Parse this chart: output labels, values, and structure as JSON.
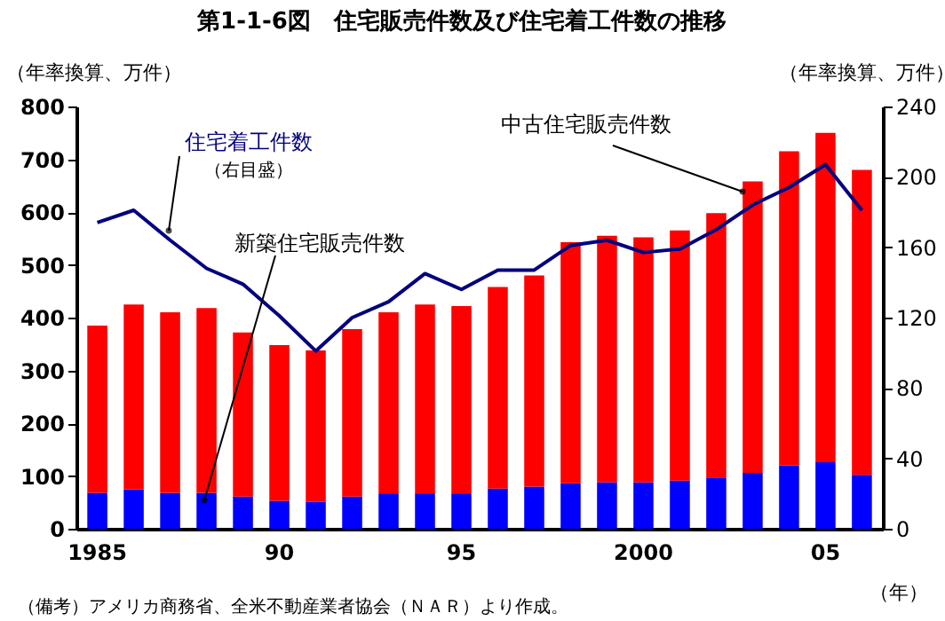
{
  "chart_data": {
    "type": "bar",
    "stacked": true,
    "title": "第1-1-6図　住宅販売件数及び住宅着工件数の推移",
    "categories": [
      "1985",
      null,
      null,
      null,
      null,
      "90",
      null,
      null,
      null,
      null,
      "95",
      null,
      null,
      null,
      null,
      "2000",
      null,
      null,
      null,
      null,
      "05",
      null
    ],
    "xlabel": "（年）",
    "ylabel": "（年率換算、万件）",
    "y2label": "（年率換算、万件）",
    "ylim": [
      0,
      800
    ],
    "yticks": [
      0,
      100,
      200,
      300,
      400,
      500,
      600,
      700,
      800
    ],
    "y2lim": [
      0,
      240
    ],
    "y2ticks": [
      0,
      40,
      80,
      120,
      160,
      200,
      240
    ],
    "series": [
      {
        "name": "新築住宅販売件数",
        "color": "#0000ff",
        "values": [
          68,
          75,
          68,
          68,
          61,
          53,
          51,
          61,
          67,
          67,
          67,
          76,
          80,
          86,
          88,
          88,
          91,
          97,
          106,
          120,
          126,
          102
        ]
      },
      {
        "name": "中古住宅販売件数",
        "color": "#ff0000",
        "values": [
          317,
          350,
          342,
          350,
          311,
          295,
          287,
          317,
          343,
          358,
          355,
          382,
          400,
          457,
          467,
          464,
          474,
          501,
          552,
          595,
          624,
          578
        ]
      },
      {
        "name": "住宅着工件数",
        "type": "line",
        "axis": "y2",
        "color": "#000080",
        "values": [
          174,
          181,
          164,
          148,
          139,
          121,
          101,
          120,
          129,
          145,
          136,
          147,
          147,
          161,
          164,
          157,
          159,
          170,
          184,
          194,
          207,
          181
        ]
      }
    ],
    "annotations": [
      "（右目盛）",
      "（備考）アメリカ商務省、全米不動産業者協会（ＮＡＲ）より作成。"
    ],
    "grid": false
  }
}
